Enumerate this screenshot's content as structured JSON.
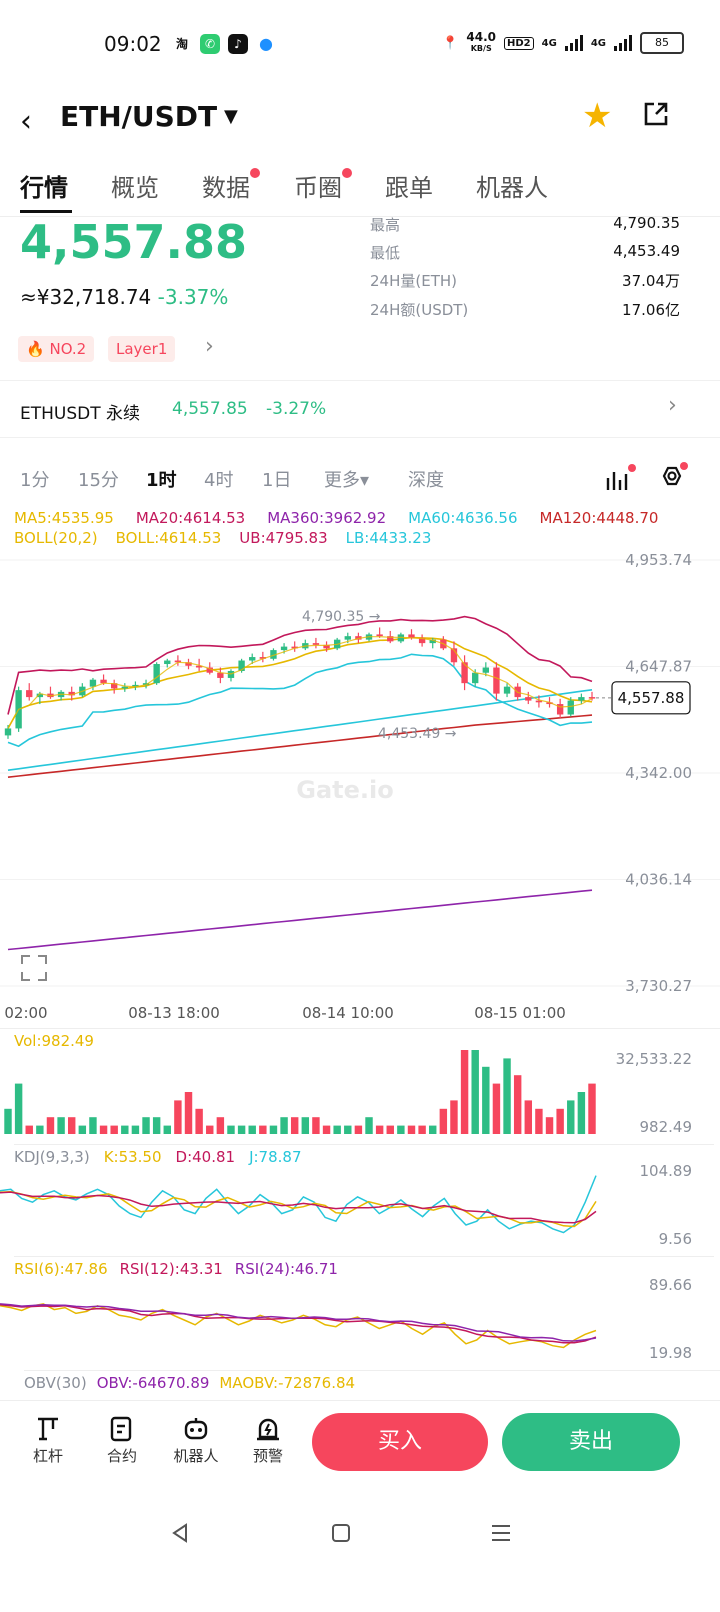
{
  "status": {
    "time": "09:02",
    "net_speed": "44.0",
    "net_unit": "KB/S",
    "hd": "HD2",
    "net1": "4G",
    "net2": "4G",
    "battery": "85"
  },
  "header": {
    "title": "ETH/USDT",
    "back_glyph": "‹",
    "caret_glyph": "▼",
    "star_glyph": "★"
  },
  "tabs": [
    {
      "label": "行情",
      "active": true,
      "dot": false
    },
    {
      "label": "概览",
      "active": false,
      "dot": false
    },
    {
      "label": "数据",
      "active": false,
      "dot": true
    },
    {
      "label": "币圈",
      "active": false,
      "dot": true
    },
    {
      "label": "跟单",
      "active": false,
      "dot": false
    },
    {
      "label": "机器人",
      "active": false,
      "dot": false
    }
  ],
  "price": {
    "last": "4,557.88",
    "cny": "≈¥32,718.74",
    "change": "-3.37%",
    "rank_tag": "NO.2",
    "layer_tag": "Layer1"
  },
  "stats": [
    {
      "label": "最高",
      "value": "4,790.35"
    },
    {
      "label": "最低",
      "value": "4,453.49"
    },
    {
      "label": "24H量(ETH)",
      "value": "37.04万"
    },
    {
      "label": "24H额(USDT)",
      "value": "17.06亿"
    }
  ],
  "perpetual": {
    "name": "ETHUSDT 永续",
    "price": "4,557.85",
    "change": "-3.27%"
  },
  "intervals": {
    "items": [
      "1分",
      "15分",
      "1时",
      "4时",
      "1日"
    ],
    "active": "1时",
    "more": "更多▾",
    "depth": "深度"
  },
  "indicators": {
    "ma": [
      {
        "text": "MA5:4535.95",
        "color": "#e6b800"
      },
      {
        "text": "MA20:4614.53",
        "color": "#c2185b"
      },
      {
        "text": "MA360:3962.92",
        "color": "#8e24aa"
      },
      {
        "text": "MA60:4636.56",
        "color": "#26c6da"
      },
      {
        "text": "MA120:4448.70",
        "color": "#c62828"
      }
    ],
    "boll": [
      {
        "text": "BOLL(20,2)",
        "color": "#e6b800"
      },
      {
        "text": "BOLL:4614.53",
        "color": "#e6b800"
      },
      {
        "text": "UB:4795.83",
        "color": "#c2185b"
      },
      {
        "text": "LB:4433.23",
        "color": "#26c6da"
      }
    ],
    "vol": "Vol:982.49",
    "kdj": [
      {
        "text": "KDJ(9,3,3)",
        "color": "#8a8f99"
      },
      {
        "text": "K:53.50",
        "color": "#e6b800"
      },
      {
        "text": "D:40.81",
        "color": "#c2185b"
      },
      {
        "text": "J:78.87",
        "color": "#26c6da"
      }
    ],
    "rsi": [
      {
        "text": "RSI(6):47.86",
        "color": "#e6b800"
      },
      {
        "text": "RSI(12):43.31",
        "color": "#c2185b"
      },
      {
        "text": "RSI(24):46.71",
        "color": "#8e24aa"
      }
    ],
    "obv": [
      {
        "text": "OBV(30)",
        "color": "#8a8f99"
      },
      {
        "text": "OBV:-64670.89",
        "color": "#8e24aa"
      },
      {
        "text": "MAOBV:-72876.84",
        "color": "#e6b800"
      }
    ]
  },
  "chart_data": {
    "type": "candlestick",
    "y_ticks": [
      "4,953.74",
      "4,647.87",
      "4,342.00",
      "4,036.14",
      "3,730.27"
    ],
    "ylim": [
      3730.27,
      4953.74
    ],
    "x_ticks": [
      "02:00",
      "08-13 18:00",
      "08-14 10:00",
      "08-15 01:00"
    ],
    "high_label": "4,790.35 →",
    "low_label": "4,453.49 →",
    "current": "4,557.88",
    "watermark": "Gate.io",
    "candles": [
      [
        4450,
        4480,
        4440,
        4470
      ],
      [
        4470,
        4590,
        4460,
        4580
      ],
      [
        4580,
        4600,
        4550,
        4560
      ],
      [
        4560,
        4575,
        4540,
        4570
      ],
      [
        4570,
        4590,
        4555,
        4560
      ],
      [
        4560,
        4580,
        4550,
        4575
      ],
      [
        4575,
        4590,
        4550,
        4565
      ],
      [
        4565,
        4600,
        4560,
        4590
      ],
      [
        4590,
        4615,
        4580,
        4610
      ],
      [
        4610,
        4625,
        4595,
        4600
      ],
      [
        4600,
        4610,
        4570,
        4585
      ],
      [
        4585,
        4600,
        4575,
        4590
      ],
      [
        4590,
        4605,
        4580,
        4595
      ],
      [
        4595,
        4610,
        4585,
        4600
      ],
      [
        4600,
        4660,
        4595,
        4655
      ],
      [
        4655,
        4670,
        4645,
        4665
      ],
      [
        4665,
        4680,
        4650,
        4660
      ],
      [
        4660,
        4670,
        4640,
        4650
      ],
      [
        4650,
        4670,
        4635,
        4645
      ],
      [
        4645,
        4660,
        4625,
        4630
      ],
      [
        4630,
        4645,
        4600,
        4615
      ],
      [
        4615,
        4640,
        4605,
        4635
      ],
      [
        4635,
        4670,
        4630,
        4665
      ],
      [
        4665,
        4685,
        4655,
        4675
      ],
      [
        4675,
        4690,
        4660,
        4670
      ],
      [
        4670,
        4700,
        4665,
        4695
      ],
      [
        4695,
        4715,
        4685,
        4705
      ],
      [
        4705,
        4720,
        4690,
        4700
      ],
      [
        4700,
        4725,
        4695,
        4715
      ],
      [
        4715,
        4730,
        4700,
        4710
      ],
      [
        4710,
        4720,
        4690,
        4700
      ],
      [
        4700,
        4730,
        4695,
        4725
      ],
      [
        4725,
        4745,
        4715,
        4735
      ],
      [
        4735,
        4745,
        4715,
        4725
      ],
      [
        4725,
        4745,
        4720,
        4740
      ],
      [
        4740,
        4760,
        4730,
        4735
      ],
      [
        4735,
        4750,
        4715,
        4720
      ],
      [
        4720,
        4745,
        4715,
        4740
      ],
      [
        4740,
        4755,
        4725,
        4730
      ],
      [
        4730,
        4740,
        4705,
        4715
      ],
      [
        4715,
        4730,
        4700,
        4725
      ],
      [
        4725,
        4735,
        4695,
        4700
      ],
      [
        4700,
        4720,
        4650,
        4660
      ],
      [
        4660,
        4680,
        4580,
        4600
      ],
      [
        4600,
        4640,
        4590,
        4630
      ],
      [
        4630,
        4660,
        4620,
        4645
      ],
      [
        4645,
        4660,
        4550,
        4570
      ],
      [
        4570,
        4600,
        4560,
        4590
      ],
      [
        4590,
        4600,
        4550,
        4560
      ],
      [
        4560,
        4575,
        4540,
        4550
      ],
      [
        4550,
        4565,
        4530,
        4545
      ],
      [
        4545,
        4560,
        4530,
        4540
      ],
      [
        4540,
        4555,
        4500,
        4510
      ],
      [
        4510,
        4560,
        4505,
        4550
      ],
      [
        4550,
        4570,
        4540,
        4560
      ],
      [
        4560,
        4575,
        4550,
        4558
      ]
    ],
    "volume": {
      "max": "32,533.22",
      "min": "982.49"
    },
    "kdj_range": [
      "104.89",
      "9.56"
    ],
    "rsi_range": [
      "89.66",
      "19.98"
    ]
  },
  "bottom": {
    "items": [
      {
        "label": "杠杆",
        "icon": "leverage-icon"
      },
      {
        "label": "合约",
        "icon": "contract-icon"
      },
      {
        "label": "机器人",
        "icon": "robot-icon"
      },
      {
        "label": "预警",
        "icon": "alert-icon"
      }
    ],
    "buy": "买入",
    "sell": "卖出"
  },
  "colors": {
    "up": "#2ebd85",
    "down": "#f6465d"
  }
}
